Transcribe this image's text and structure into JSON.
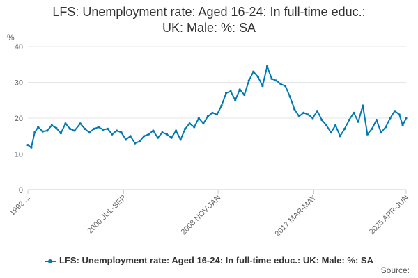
{
  "chart_data": {
    "type": "line",
    "title_line1": "LFS: Unemployment rate: Aged 16-24: In full-time educ.:",
    "title_line2": "UK: Male: %: SA",
    "ylabel": "%",
    "ylim": [
      0,
      40
    ],
    "y_ticks": [
      "0",
      "10",
      "20",
      "30",
      "40"
    ],
    "x_tick_labels": [
      "1992 ...",
      "2000 JUL-SEP",
      "2008 NOV-JAN",
      "2017 MAR-MAY",
      "2025 APR-JUN"
    ],
    "x_tick_positions": [
      1992.2,
      2000.6,
      2008.9,
      2017.3,
      2025.4
    ],
    "grid": true,
    "legend_position": "bottom",
    "series": [
      {
        "name": "LFS: Unemployment rate: Aged 16-24: In full-time educ.: UK: Male: %: SA",
        "color": "#0079b2",
        "x": [
          1992.2,
          1992.5,
          1992.8,
          1993.1,
          1993.5,
          1993.9,
          1994.3,
          1994.7,
          1995.1,
          1995.5,
          1995.9,
          1996.3,
          1996.8,
          1997.2,
          1997.6,
          1998.0,
          1998.4,
          1998.8,
          1999.2,
          1999.6,
          2000.0,
          2000.4,
          2000.8,
          2001.2,
          2001.6,
          2002.0,
          2002.4,
          2002.8,
          2003.2,
          2003.6,
          2004.0,
          2004.4,
          2004.8,
          2005.2,
          2005.6,
          2006.0,
          2006.4,
          2006.8,
          2007.2,
          2007.6,
          2008.0,
          2008.4,
          2008.8,
          2009.2,
          2009.6,
          2010.0,
          2010.4,
          2010.8,
          2011.2,
          2011.6,
          2012.0,
          2012.4,
          2012.8,
          2013.2,
          2013.6,
          2014.0,
          2014.4,
          2014.8,
          2015.2,
          2015.6,
          2016.0,
          2016.4,
          2016.8,
          2017.2,
          2017.6,
          2018.0,
          2018.4,
          2018.8,
          2019.2,
          2019.6,
          2020.0,
          2020.4,
          2020.8,
          2021.2,
          2021.6,
          2022.0,
          2022.4,
          2022.8,
          2023.2,
          2023.6,
          2024.0,
          2024.4,
          2024.8,
          2025.1,
          2025.4
        ],
        "values": [
          12.5,
          11.8,
          16.0,
          17.5,
          16.3,
          16.5,
          18.0,
          17.2,
          15.8,
          18.5,
          17.0,
          16.5,
          18.5,
          17.0,
          16.0,
          17.0,
          17.5,
          16.8,
          17.0,
          15.5,
          16.5,
          16.0,
          14.0,
          15.0,
          13.0,
          13.5,
          15.0,
          15.5,
          16.5,
          14.5,
          16.0,
          15.5,
          14.5,
          16.5,
          14.0,
          17.0,
          18.5,
          17.5,
          20.0,
          18.5,
          20.5,
          21.5,
          21.0,
          23.5,
          27.0,
          27.5,
          25.0,
          28.0,
          26.5,
          30.5,
          33.0,
          31.5,
          29.0,
          34.5,
          31.0,
          30.5,
          29.5,
          29.0,
          26.0,
          22.5,
          20.5,
          21.5,
          21.0,
          20.0,
          22.0,
          19.5,
          18.0,
          16.0,
          18.0,
          15.0,
          17.0,
          19.5,
          21.5,
          19.0,
          23.5,
          15.5,
          17.0,
          19.5,
          16.0,
          17.5,
          20.0,
          22.0,
          21.0,
          18.0,
          20.0
        ]
      }
    ]
  },
  "footer": {
    "source_label": "Source:"
  }
}
